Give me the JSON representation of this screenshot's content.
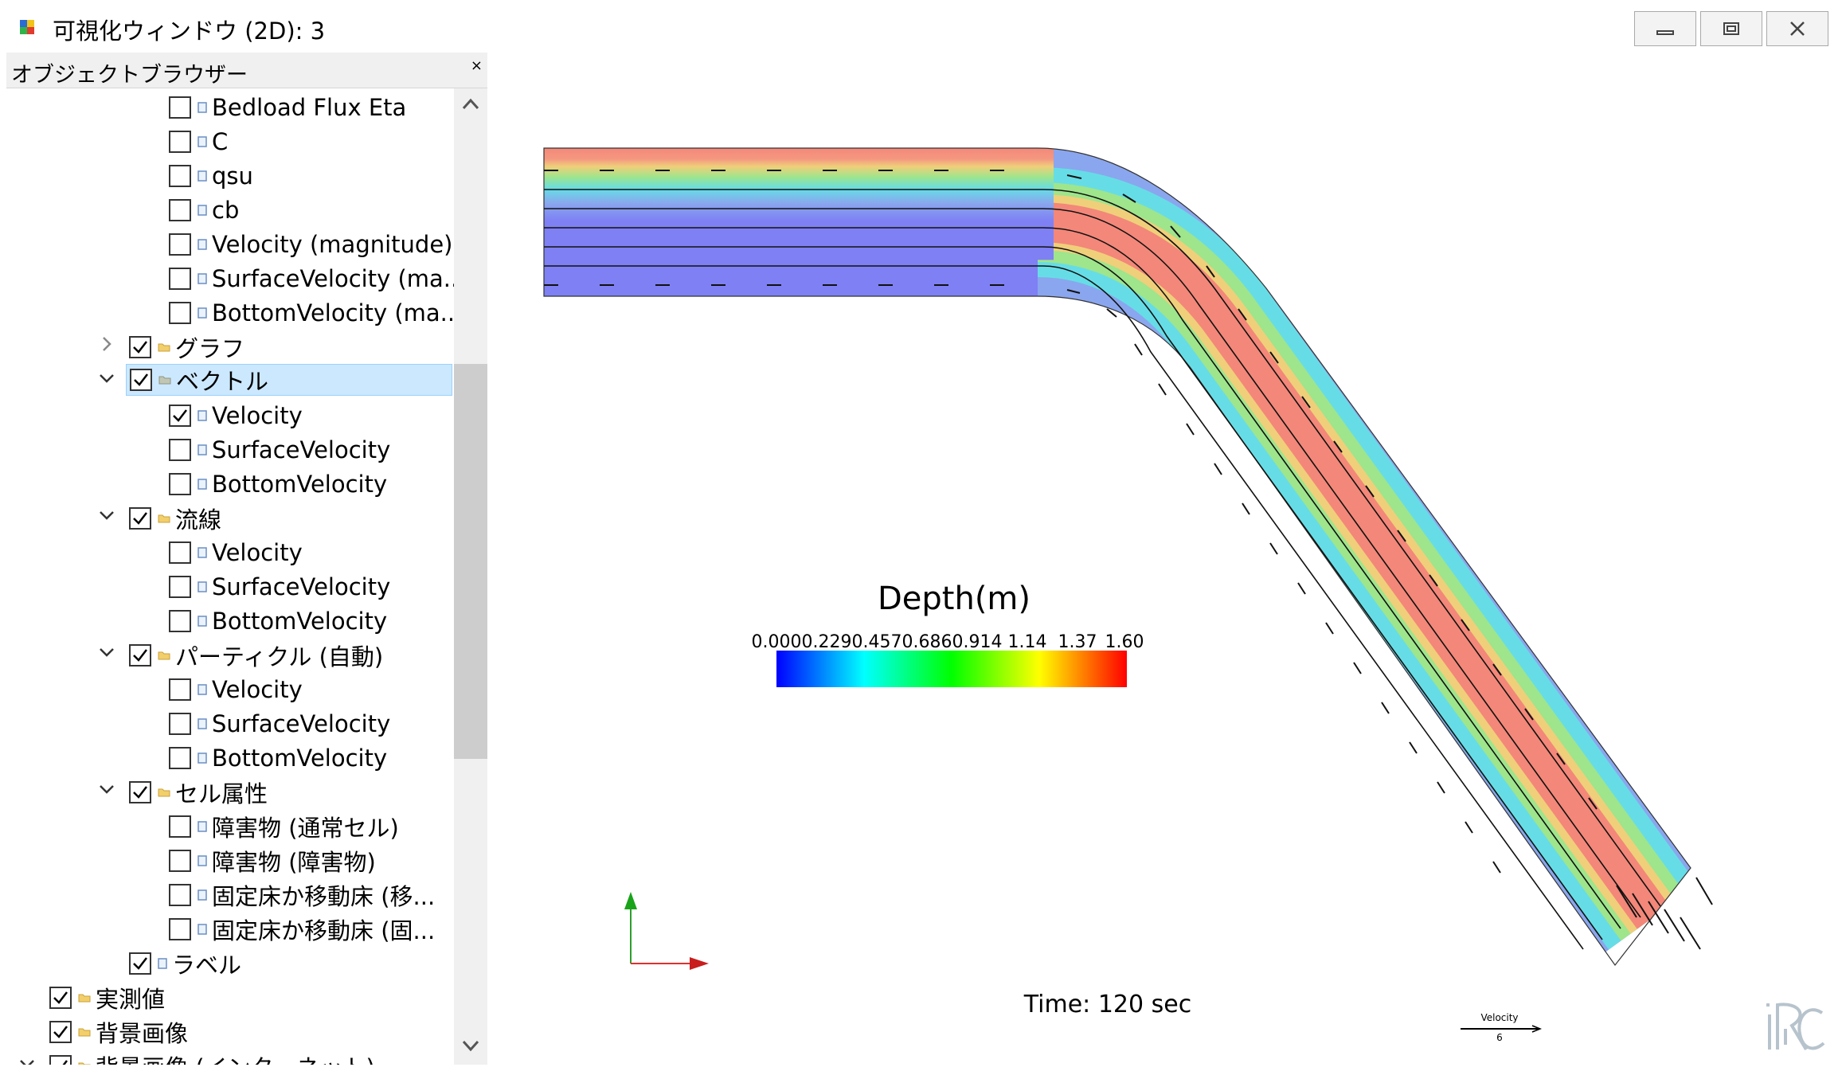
{
  "window": {
    "title": "可視化ウィンドウ (2D): 3",
    "minimize_icon": "minimize-icon",
    "maximize_icon": "maximize-icon",
    "close_icon": "close-icon"
  },
  "sidebar": {
    "title": "オブジェクトブラウザー",
    "close_label": "×",
    "items": [
      {
        "label": "Bedload Flux Eta",
        "checked": false
      },
      {
        "label": "C",
        "checked": false
      },
      {
        "label": "qsu",
        "checked": false
      },
      {
        "label": "cb",
        "checked": false
      },
      {
        "label": "Velocity (magnitude)",
        "checked": false
      },
      {
        "label": "SurfaceVelocity (ma...",
        "checked": false
      },
      {
        "label": "BottomVelocity (ma...",
        "checked": false
      },
      {
        "label": "グラフ",
        "checked": true
      },
      {
        "label": "ベクトル",
        "checked": true
      },
      {
        "label": "Velocity",
        "checked": true
      },
      {
        "label": "SurfaceVelocity",
        "checked": false
      },
      {
        "label": "BottomVelocity",
        "checked": false
      },
      {
        "label": "流線",
        "checked": true
      },
      {
        "label": "Velocity",
        "checked": false
      },
      {
        "label": "SurfaceVelocity",
        "checked": false
      },
      {
        "label": "BottomVelocity",
        "checked": false
      },
      {
        "label": "パーティクル (自動)",
        "checked": true
      },
      {
        "label": "Velocity",
        "checked": false
      },
      {
        "label": "SurfaceVelocity",
        "checked": false
      },
      {
        "label": "BottomVelocity",
        "checked": false
      },
      {
        "label": "セル属性",
        "checked": true
      },
      {
        "label": "障害物 (通常セル)",
        "checked": false
      },
      {
        "label": "障害物 (障害物)",
        "checked": false
      },
      {
        "label": "固定床か移動床 (移...",
        "checked": false
      },
      {
        "label": "固定床か移動床 (固...",
        "checked": false
      },
      {
        "label": "ラベル",
        "checked": true
      },
      {
        "label": "実測値",
        "checked": true
      },
      {
        "label": "背景画像",
        "checked": true
      },
      {
        "label": "背景画像 (インターネット)",
        "checked": true
      }
    ]
  },
  "viewport": {
    "colorbar": {
      "title": "Depth(m)",
      "ticks": [
        "0.000",
        "0.229",
        "0.457",
        "0.686",
        "0.914",
        "1.14",
        "1.37",
        "1.60"
      ]
    },
    "time_label": "Time: 120 sec",
    "vector_legend": {
      "label": "Velocity",
      "value": "6"
    },
    "logo": "iRIC-logo"
  }
}
